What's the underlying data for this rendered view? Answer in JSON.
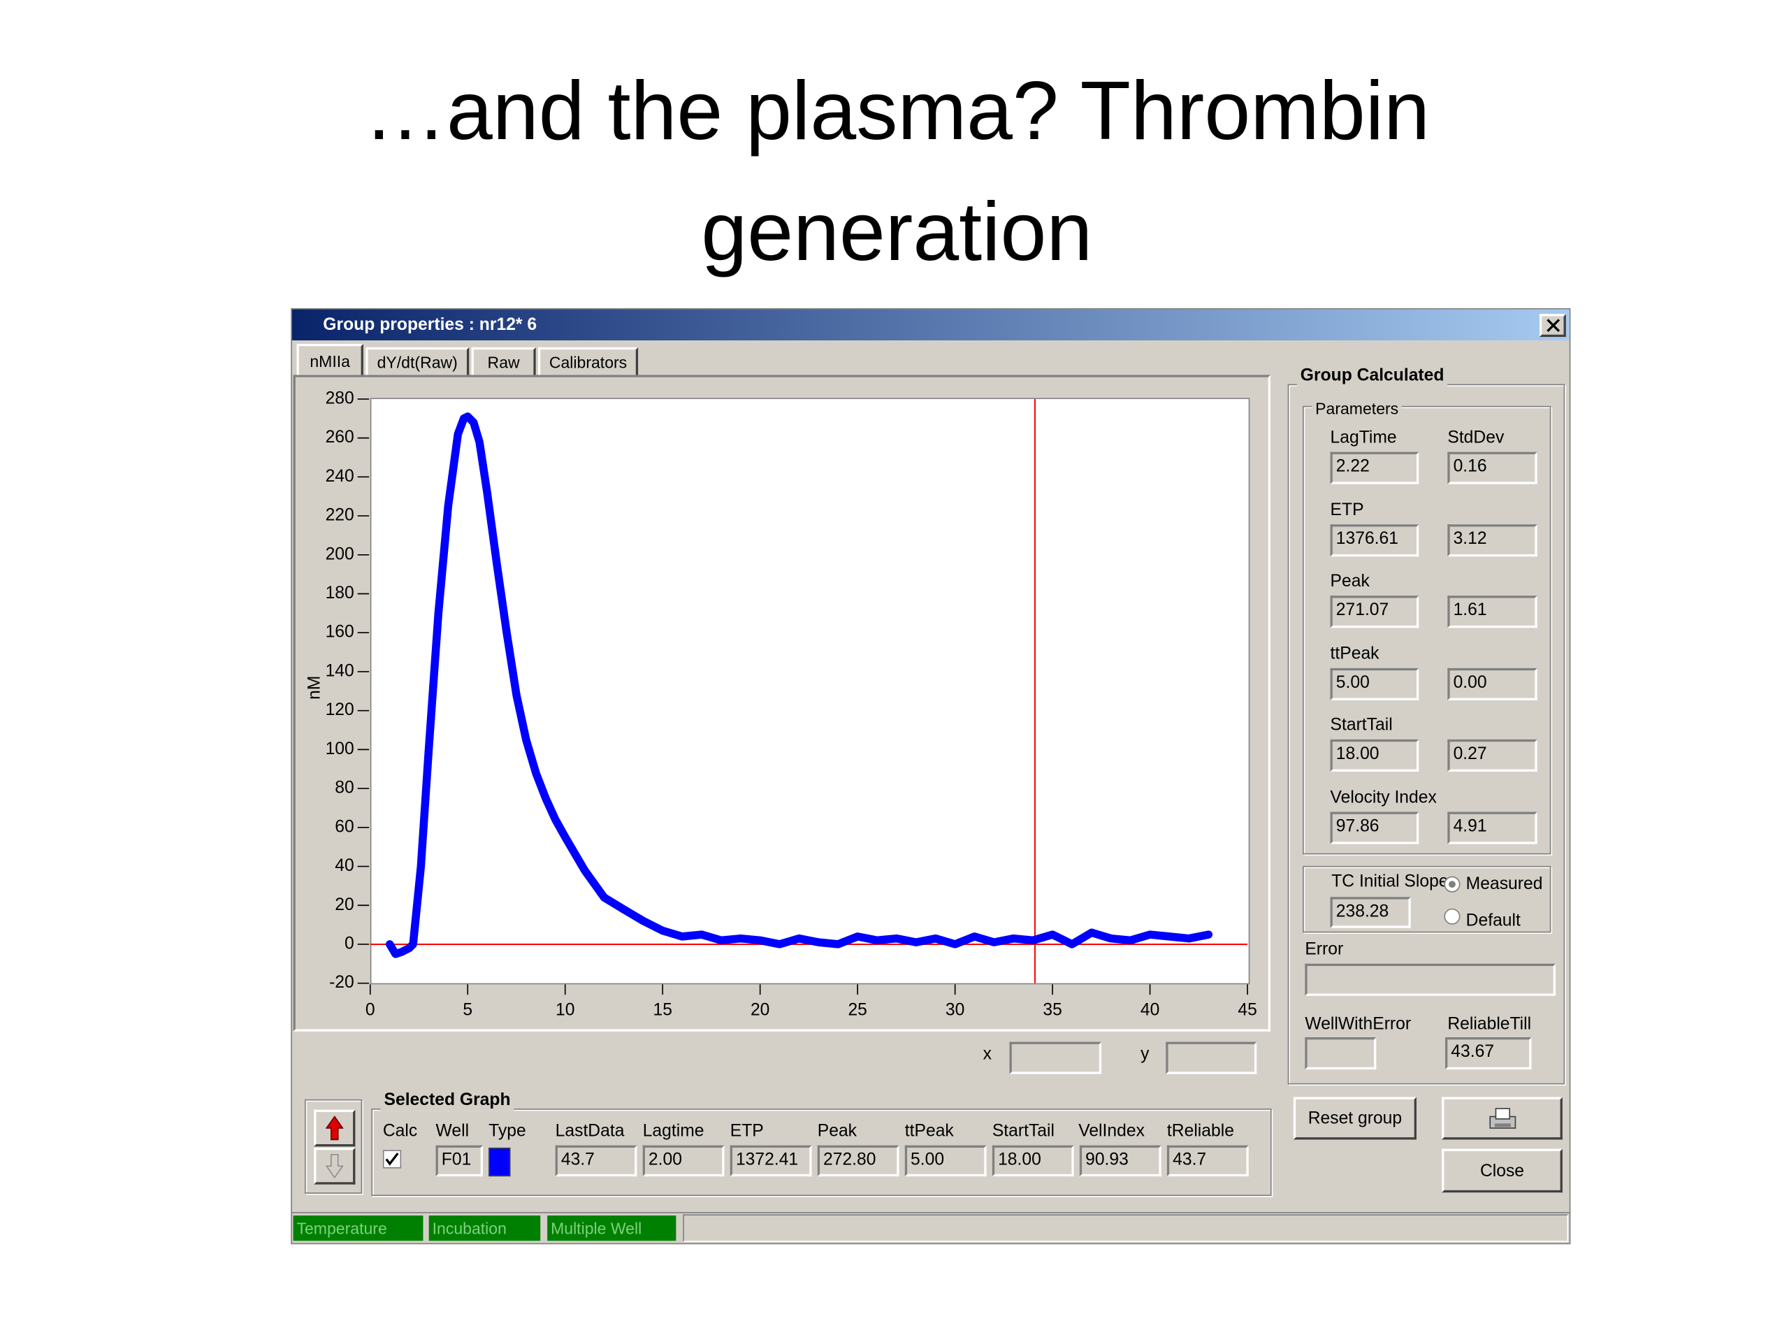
{
  "slide_title": "…and the plasma? Thrombin generation",
  "window": {
    "title": "Group properties : nr12* 6",
    "tabs": [
      "nMIIa",
      "dY/dt(Raw)",
      "Raw",
      "Calibrators"
    ],
    "cursor": {
      "x_label": "x",
      "y_label": "y"
    },
    "group_calculated": {
      "title": "Group Calculated",
      "parameters_title": "Parameters",
      "std_header": "StdDev",
      "rows": [
        {
          "label": "LagTime",
          "value": "2.22",
          "std": "0.16"
        },
        {
          "label": "ETP",
          "value": "1376.61",
          "std": "3.12"
        },
        {
          "label": "Peak",
          "value": "271.07",
          "std": "1.61"
        },
        {
          "label": "ttPeak",
          "value": "5.00",
          "std": "0.00"
        },
        {
          "label": "StartTail",
          "value": "18.00",
          "std": "0.27"
        },
        {
          "label": "Velocity Index",
          "value": "97.86",
          "std": "4.91"
        }
      ],
      "tc_label": "TC Initial Slope",
      "tc_value": "238.28",
      "tc_options": [
        "Measured",
        "Default"
      ],
      "error_label": "Error",
      "well_with_error_label": "WellWithError",
      "reliable_till_label": "ReliableTill",
      "reliable_till": "43.67"
    },
    "selected_graph": {
      "title": "Selected Graph",
      "headers": [
        "Calc",
        "Well",
        "Type",
        "LastData",
        "Lagtime",
        "ETP",
        "Peak",
        "ttPeak",
        "StartTail",
        "VelIndex",
        "tReliable"
      ],
      "well": "F01",
      "cells": [
        "43.7",
        "2.00",
        "1372.41",
        "272.80",
        "5.00",
        "18.00",
        "90.93",
        "43.7"
      ]
    },
    "buttons": [
      "Reset group",
      "Close"
    ],
    "status": [
      "Temperature",
      "Incubation",
      "Multiple Well"
    ]
  },
  "chart_data": {
    "type": "line",
    "y_label": "nM",
    "color": "#0000ff",
    "x": [
      1,
      1.3,
      1.6,
      2,
      2.2,
      2.6,
      3,
      3.5,
      4,
      4.5,
      4.8,
      5,
      5.3,
      5.6,
      6,
      6.5,
      7,
      7.5,
      8,
      8.5,
      9,
      9.5,
      10,
      11,
      12,
      13,
      14,
      15,
      16,
      17,
      18,
      19,
      20,
      21,
      22,
      23,
      24,
      25,
      26,
      27,
      28,
      29,
      30,
      31,
      32,
      33,
      34,
      35,
      36,
      37,
      38,
      39,
      40,
      41,
      42,
      43
    ],
    "values": [
      0,
      -5,
      -4,
      -2,
      0,
      40,
      100,
      170,
      225,
      262,
      270,
      271,
      268,
      258,
      232,
      195,
      160,
      128,
      105,
      88,
      75,
      64,
      55,
      38,
      24,
      18,
      12,
      7,
      4,
      5,
      2,
      3,
      2,
      0,
      3,
      1,
      0,
      4,
      2,
      3,
      1,
      3,
      0,
      4,
      1,
      3,
      2,
      5,
      0,
      6,
      3,
      2,
      5,
      4,
      3,
      5
    ],
    "xlim": [
      0,
      45
    ],
    "xticks": [
      0,
      5,
      10,
      15,
      20,
      25,
      30,
      35,
      40,
      45
    ],
    "ylim": [
      -20,
      280
    ],
    "yticks": [
      -20,
      0,
      20,
      40,
      60,
      80,
      100,
      120,
      140,
      160,
      180,
      200,
      220,
      240,
      260,
      280
    ],
    "marker_x": 34.1,
    "marker_y": 0,
    "marker_color": "#ff0000"
  }
}
